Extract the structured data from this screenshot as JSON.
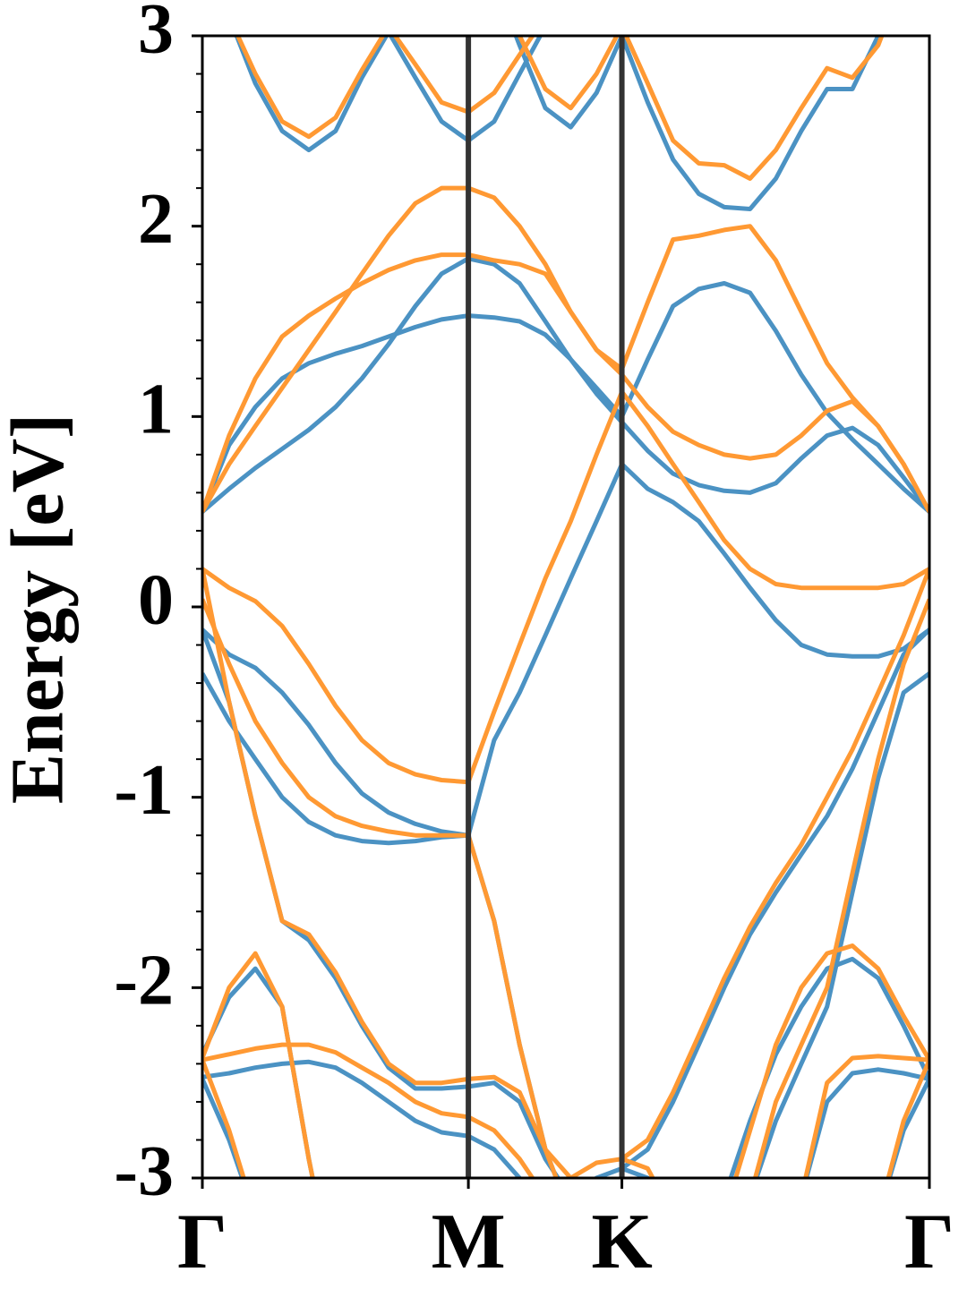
{
  "chart_data": {
    "type": "line",
    "ylabel": "Energy [eV]",
    "x": [
      0,
      0.058,
      0.115,
      0.173,
      0.231,
      0.289,
      0.346,
      0.404,
      0.462,
      0.519,
      0.577,
      0.633,
      0.688,
      0.744,
      0.799,
      0.855,
      0.91,
      0.966,
      1.021,
      1.077,
      1.132,
      1.188,
      1.244,
      1.299,
      1.355,
      1.41,
      1.466,
      1.521,
      1.577
    ],
    "xlim": [
      0,
      1.577
    ],
    "xticks": [
      {
        "value": 0,
        "label": "Γ"
      },
      {
        "value": 0.577,
        "label": "M"
      },
      {
        "value": 0.91,
        "label": "K"
      },
      {
        "value": 1.577,
        "label": "Γ"
      }
    ],
    "ylim": [
      -3,
      3
    ],
    "yticks": [
      -3,
      -2,
      -1,
      0,
      1,
      2,
      3
    ],
    "yminorticks": [
      -2.8,
      -2.6,
      -2.4,
      -2.2,
      -1.8,
      -1.6,
      -1.4,
      -1.2,
      -0.8,
      -0.6,
      -0.4,
      -0.2,
      0.2,
      0.4,
      0.6,
      0.8,
      1.2,
      1.4,
      1.6,
      1.8,
      2.2,
      2.4,
      2.6,
      2.8
    ],
    "series": [
      {
        "color": "#4b92c3",
        "values": [
          3.6,
          3.1,
          2.75,
          2.5,
          2.4,
          2.5,
          2.78,
          3.02,
          2.78,
          2.55,
          2.45,
          2.55,
          2.8,
          3.05,
          3.3,
          3.5,
          3.6,
          3.5,
          3.4,
          3.3,
          3.3,
          3.3,
          3.3,
          3.3,
          3.3,
          3.3,
          3.4,
          3.5,
          3.6
        ]
      },
      {
        "color": "#4b92c3",
        "values": [
          3.6,
          3.5,
          3.5,
          3.5,
          3.4,
          3.3,
          3.2,
          3.1,
          3.3,
          3.4,
          3.5,
          3.3,
          2.95,
          2.62,
          2.52,
          2.7,
          3.0,
          2.65,
          2.35,
          2.17,
          2.1,
          2.09,
          2.25,
          2.5,
          2.72,
          2.72,
          3.0,
          3.4,
          3.6
        ]
      },
      {
        "color": "#4b92c3",
        "values": [
          0.5,
          0.62,
          0.73,
          0.83,
          0.93,
          1.05,
          1.2,
          1.38,
          1.58,
          1.75,
          1.83,
          1.8,
          1.7,
          1.5,
          1.3,
          1.12,
          0.97,
          0.82,
          0.7,
          0.64,
          0.61,
          0.6,
          0.65,
          0.78,
          0.9,
          0.94,
          0.85,
          0.68,
          0.5
        ]
      },
      {
        "color": "#4b92c3",
        "values": [
          0.5,
          0.85,
          1.05,
          1.2,
          1.28,
          1.33,
          1.37,
          1.42,
          1.47,
          1.51,
          1.53,
          1.52,
          1.5,
          1.43,
          1.3,
          1.15,
          1.0,
          1.3,
          1.58,
          1.67,
          1.7,
          1.65,
          1.45,
          1.22,
          1.02,
          0.88,
          0.75,
          0.62,
          0.5
        ]
      },
      {
        "color": "#4b92c3",
        "values": [
          -0.12,
          -0.25,
          -0.32,
          -0.45,
          -0.62,
          -0.82,
          -0.98,
          -1.08,
          -1.14,
          -1.18,
          -1.2,
          -0.7,
          -0.45,
          -0.15,
          0.15,
          0.45,
          0.75,
          0.62,
          0.55,
          0.45,
          0.28,
          0.1,
          -0.07,
          -0.2,
          -0.25,
          -0.26,
          -0.26,
          -0.22,
          -0.12
        ]
      },
      {
        "color": "#4b92c3",
        "values": [
          -0.35,
          -0.6,
          -0.8,
          -1.0,
          -1.13,
          -1.2,
          -1.23,
          -1.24,
          -1.23,
          -1.21,
          -1.2,
          -1.65,
          -2.3,
          -2.85,
          -3.2,
          null,
          null,
          null,
          null,
          null,
          null,
          null,
          null,
          null,
          null,
          null,
          null,
          null,
          null
        ]
      },
      {
        "color": "#4b92c3",
        "values": [
          -0.12,
          -0.5,
          -1.1,
          -1.65,
          -1.75,
          -1.95,
          -2.2,
          -2.42,
          -2.53,
          -2.53,
          -2.52,
          -2.5,
          -2.6,
          -2.9,
          -3.1,
          -3.0,
          -2.95,
          -3.0,
          -3.2,
          null,
          null,
          null,
          null,
          null,
          null,
          null,
          null,
          null,
          null
        ]
      },
      {
        "color": "#4b92c3",
        "values": [
          -2.35,
          -2.05,
          -1.9,
          -2.1,
          -2.9,
          -3.6,
          null,
          null,
          null,
          null,
          null,
          null,
          null,
          null,
          null,
          null,
          null,
          null,
          null,
          null,
          null,
          null,
          null,
          null,
          null,
          null,
          null,
          null,
          null
        ]
      },
      {
        "color": "#4b92c3",
        "values": [
          -2.47,
          -2.45,
          -2.42,
          -2.4,
          -2.39,
          -2.42,
          -2.5,
          -2.6,
          -2.7,
          -2.76,
          -2.78,
          -2.85,
          -3.0,
          -3.2,
          null,
          null,
          null,
          null,
          null,
          null,
          null,
          null,
          null,
          null,
          null,
          null,
          null,
          null,
          null
        ]
      },
      {
        "color": "#4b92c3",
        "values": [
          -2.48,
          -2.8,
          -3.2,
          null,
          null,
          null,
          null,
          null,
          null,
          null,
          null,
          null,
          null,
          null,
          null,
          null,
          null,
          null,
          null,
          null,
          null,
          null,
          null,
          null,
          null,
          null,
          null,
          null,
          null
        ]
      },
      {
        "color": "#4b92c3",
        "values": [
          null,
          null,
          null,
          null,
          null,
          null,
          null,
          null,
          null,
          null,
          null,
          null,
          null,
          null,
          null,
          null,
          null,
          null,
          null,
          null,
          -3.1,
          -2.7,
          -2.35,
          -2.1,
          -1.9,
          -1.85,
          -1.95,
          -2.2,
          -2.48
        ]
      },
      {
        "color": "#4b92c3",
        "values": [
          null,
          null,
          null,
          null,
          null,
          null,
          null,
          null,
          null,
          null,
          null,
          null,
          null,
          null,
          null,
          null,
          null,
          null,
          null,
          null,
          null,
          null,
          null,
          -3.1,
          -2.6,
          -2.45,
          -2.43,
          -2.45,
          -2.48
        ]
      },
      {
        "color": "#4b92c3",
        "values": [
          null,
          null,
          null,
          null,
          null,
          null,
          null,
          null,
          null,
          null,
          null,
          null,
          null,
          null,
          null,
          null,
          null,
          null,
          null,
          null,
          null,
          null,
          null,
          null,
          null,
          null,
          -3.2,
          -2.75,
          -2.48
        ]
      },
      {
        "color": "#4b92c3",
        "values": [
          null,
          null,
          null,
          null,
          null,
          null,
          null,
          null,
          null,
          null,
          null,
          null,
          null,
          null,
          null,
          null,
          -2.95,
          -2.85,
          -2.6,
          -2.3,
          -2.0,
          -1.72,
          -1.5,
          -1.3,
          -1.1,
          -0.85,
          -0.55,
          -0.25,
          -0.12
        ]
      },
      {
        "color": "#4b92c3",
        "values": [
          null,
          null,
          null,
          null,
          null,
          null,
          null,
          null,
          null,
          null,
          null,
          null,
          null,
          null,
          null,
          null,
          null,
          null,
          null,
          null,
          null,
          -3.1,
          -2.7,
          -2.4,
          -2.1,
          -1.5,
          -0.9,
          -0.45,
          -0.35
        ]
      },
      {
        "color": "#ff9933",
        "values": [
          3.6,
          3.1,
          2.8,
          2.55,
          2.47,
          2.57,
          2.82,
          3.05,
          2.85,
          2.65,
          2.6,
          2.7,
          2.9,
          3.1,
          3.3,
          3.5,
          3.6,
          3.5,
          3.4,
          3.3,
          3.3,
          3.3,
          3.3,
          3.3,
          3.3,
          3.3,
          3.4,
          3.5,
          3.6
        ]
      },
      {
        "color": "#ff9933",
        "values": [
          3.6,
          3.5,
          3.5,
          3.5,
          3.4,
          3.3,
          3.2,
          3.1,
          3.3,
          3.4,
          3.5,
          3.3,
          3.0,
          2.72,
          2.62,
          2.8,
          3.05,
          2.75,
          2.45,
          2.33,
          2.32,
          2.25,
          2.4,
          2.62,
          2.83,
          2.78,
          2.95,
          3.3,
          3.6
        ]
      },
      {
        "color": "#ff9933",
        "values": [
          0.5,
          0.75,
          0.95,
          1.15,
          1.35,
          1.55,
          1.75,
          1.95,
          2.12,
          2.2,
          2.2,
          2.15,
          2.0,
          1.8,
          1.55,
          1.35,
          1.22,
          1.05,
          0.92,
          0.85,
          0.8,
          0.78,
          0.8,
          0.9,
          1.03,
          1.08,
          0.95,
          0.75,
          0.5
        ]
      },
      {
        "color": "#ff9933",
        "values": [
          0.5,
          0.9,
          1.2,
          1.42,
          1.53,
          1.62,
          1.7,
          1.77,
          1.82,
          1.85,
          1.85,
          1.82,
          1.8,
          1.75,
          1.55,
          1.35,
          1.25,
          1.6,
          1.93,
          1.95,
          1.98,
          2.0,
          1.82,
          1.55,
          1.28,
          1.1,
          0.95,
          0.75,
          0.5
        ]
      },
      {
        "color": "#ff9933",
        "values": [
          0.2,
          0.1,
          0.03,
          -0.1,
          -0.3,
          -0.52,
          -0.7,
          -0.82,
          -0.88,
          -0.91,
          -0.92,
          -0.55,
          -0.2,
          0.15,
          0.45,
          0.8,
          1.13,
          0.95,
          0.75,
          0.55,
          0.35,
          0.2,
          0.12,
          0.1,
          0.1,
          0.1,
          0.1,
          0.12,
          0.2
        ]
      },
      {
        "color": "#ff9933",
        "values": [
          0.04,
          -0.3,
          -0.6,
          -0.82,
          -1.0,
          -1.1,
          -1.15,
          -1.18,
          -1.2,
          -1.2,
          -1.2,
          -1.65,
          -2.3,
          -2.85,
          -3.2,
          null,
          null,
          null,
          null,
          null,
          null,
          null,
          null,
          null,
          null,
          null,
          null,
          null,
          null
        ]
      },
      {
        "color": "#ff9933",
        "values": [
          0.2,
          -0.5,
          -1.1,
          -1.65,
          -1.72,
          -1.92,
          -2.18,
          -2.4,
          -2.5,
          -2.5,
          -2.48,
          -2.47,
          -2.55,
          -2.85,
          -3.0,
          -2.92,
          -2.9,
          -2.95,
          -3.2,
          null,
          null,
          null,
          null,
          null,
          null,
          null,
          null,
          null,
          null
        ]
      },
      {
        "color": "#ff9933",
        "values": [
          -2.37,
          -2.0,
          -1.82,
          -2.1,
          -2.9,
          -3.6,
          null,
          null,
          null,
          null,
          null,
          null,
          null,
          null,
          null,
          null,
          null,
          null,
          null,
          null,
          null,
          null,
          null,
          null,
          null,
          null,
          null,
          null,
          null
        ]
      },
      {
        "color": "#ff9933",
        "values": [
          -2.38,
          -2.35,
          -2.32,
          -2.3,
          -2.3,
          -2.34,
          -2.42,
          -2.5,
          -2.6,
          -2.66,
          -2.68,
          -2.75,
          -2.9,
          -3.1,
          null,
          null,
          null,
          null,
          null,
          null,
          null,
          null,
          null,
          null,
          null,
          null,
          null,
          null,
          null
        ]
      },
      {
        "color": "#ff9933",
        "values": [
          -2.38,
          -2.75,
          -3.2,
          null,
          null,
          null,
          null,
          null,
          null,
          null,
          null,
          null,
          null,
          null,
          null,
          null,
          null,
          null,
          null,
          null,
          null,
          null,
          null,
          null,
          null,
          null,
          null,
          null,
          null
        ]
      },
      {
        "color": "#ff9933",
        "values": [
          null,
          null,
          null,
          null,
          null,
          null,
          null,
          null,
          null,
          null,
          null,
          null,
          null,
          null,
          null,
          null,
          null,
          null,
          null,
          null,
          -3.2,
          -2.75,
          -2.3,
          -2.0,
          -1.82,
          -1.78,
          -1.9,
          -2.15,
          -2.38
        ]
      },
      {
        "color": "#ff9933",
        "values": [
          null,
          null,
          null,
          null,
          null,
          null,
          null,
          null,
          null,
          null,
          null,
          null,
          null,
          null,
          null,
          null,
          null,
          null,
          null,
          null,
          null,
          null,
          null,
          -3.1,
          -2.5,
          -2.37,
          -2.36,
          -2.37,
          -2.38
        ]
      },
      {
        "color": "#ff9933",
        "values": [
          null,
          null,
          null,
          null,
          null,
          null,
          null,
          null,
          null,
          null,
          null,
          null,
          null,
          null,
          null,
          null,
          null,
          null,
          null,
          null,
          null,
          null,
          null,
          null,
          null,
          null,
          -3.2,
          -2.7,
          -2.38
        ]
      },
      {
        "color": "#ff9933",
        "values": [
          null,
          null,
          null,
          null,
          null,
          null,
          null,
          null,
          null,
          null,
          null,
          null,
          null,
          null,
          null,
          null,
          -2.9,
          -2.8,
          -2.55,
          -2.25,
          -1.95,
          -1.68,
          -1.45,
          -1.25,
          -1.0,
          -0.75,
          -0.45,
          -0.15,
          0.2
        ]
      },
      {
        "color": "#ff9933",
        "values": [
          null,
          null,
          null,
          null,
          null,
          null,
          null,
          null,
          null,
          null,
          null,
          null,
          null,
          null,
          null,
          null,
          null,
          null,
          null,
          null,
          null,
          -3.1,
          -2.6,
          -2.3,
          -2.0,
          -1.4,
          -0.8,
          -0.3,
          0.04
        ]
      }
    ]
  }
}
